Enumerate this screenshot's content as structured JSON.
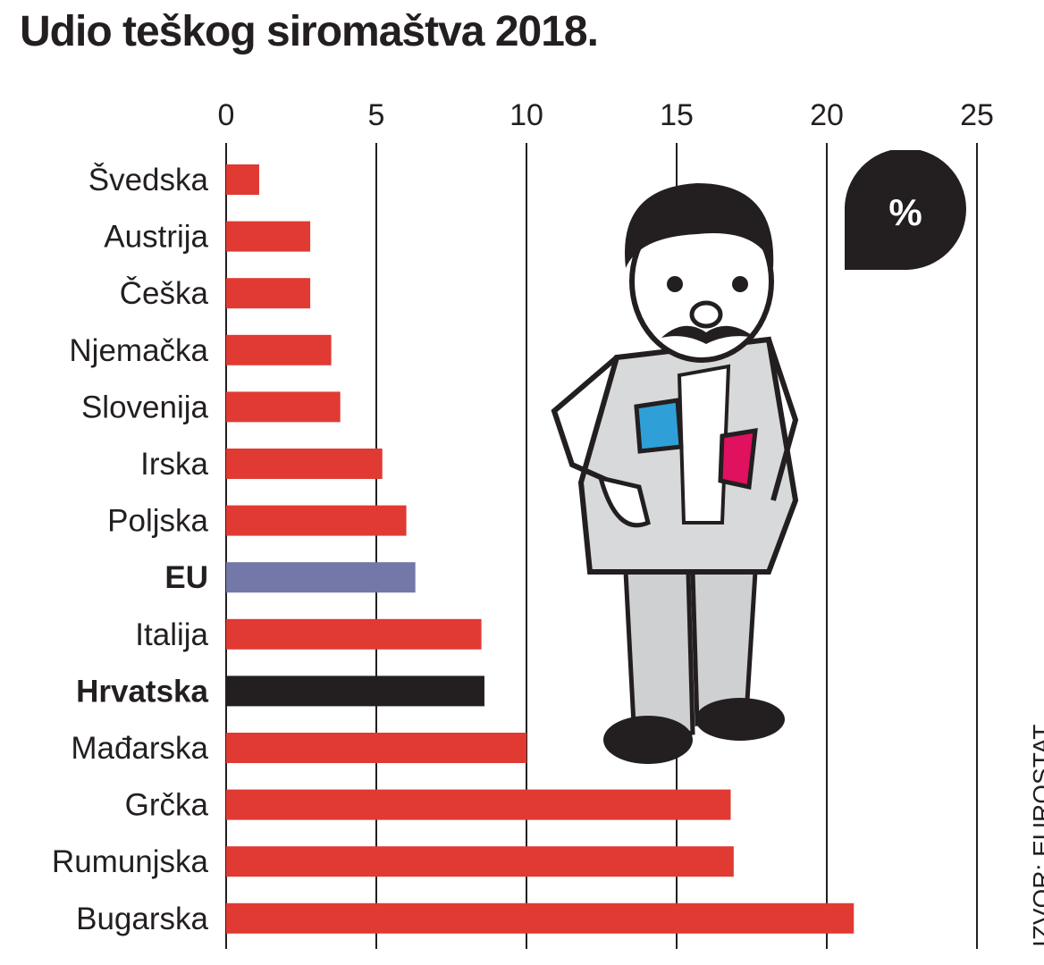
{
  "chart_data": {
    "type": "bar",
    "orientation": "horizontal",
    "title": "Udio teškog siromaštva 2018.",
    "unit": "%",
    "source": "IZVOR: EUROSTAT",
    "xlim": [
      0,
      25
    ],
    "ticks": [
      0,
      5,
      10,
      15,
      20,
      25
    ],
    "categories": [
      "Švedska",
      "Austrija",
      "Češka",
      "Njemačka",
      "Slovenija",
      "Irska",
      "Poljska",
      "EU",
      "Italija",
      "Hrvatska",
      "Mađarska",
      "Grčka",
      "Rumunjska",
      "Bugarska"
    ],
    "values": [
      1.1,
      2.8,
      2.8,
      3.5,
      3.8,
      5.2,
      6.0,
      6.3,
      8.5,
      8.6,
      10.0,
      16.8,
      16.9,
      20.9
    ],
    "highlight": {
      "EU": "eu",
      "Hrvatska": "croatia"
    },
    "colors": {
      "default": "#e03a33",
      "eu": "#7378a9",
      "croatia": "#231f20",
      "grid": "#231f20",
      "badge": "#231f20"
    }
  }
}
